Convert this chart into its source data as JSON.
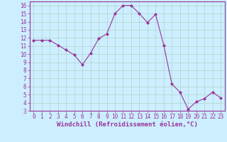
{
  "x": [
    0,
    1,
    2,
    3,
    4,
    5,
    6,
    7,
    8,
    9,
    10,
    11,
    12,
    13,
    14,
    15,
    16,
    17,
    18,
    19,
    20,
    21,
    22,
    23
  ],
  "y": [
    11.7,
    11.7,
    11.7,
    11.1,
    10.5,
    9.9,
    8.7,
    10.1,
    11.9,
    12.5,
    15.0,
    16.0,
    16.0,
    15.0,
    13.9,
    14.9,
    11.1,
    6.3,
    5.3,
    3.2,
    4.1,
    4.5,
    5.3,
    4.6
  ],
  "line_color": "#993399",
  "marker": "D",
  "marker_size": 2,
  "bg_color": "#cceeff",
  "grid_color": "#aaccbb",
  "xlabel": "Windchill (Refroidissement éolien,°C)",
  "xlabel_color": "#993399",
  "tick_color": "#993399",
  "ylim": [
    3,
    16.5
  ],
  "xlim": [
    -0.5,
    23.5
  ],
  "yticks": [
    3,
    4,
    5,
    6,
    7,
    8,
    9,
    10,
    11,
    12,
    13,
    14,
    15,
    16
  ],
  "xticks": [
    0,
    1,
    2,
    3,
    4,
    5,
    6,
    7,
    8,
    9,
    10,
    11,
    12,
    13,
    14,
    15,
    16,
    17,
    18,
    19,
    20,
    21,
    22,
    23
  ],
  "spine_color": "#993399",
  "label_fontsize": 6.5,
  "tick_fontsize": 5.5
}
